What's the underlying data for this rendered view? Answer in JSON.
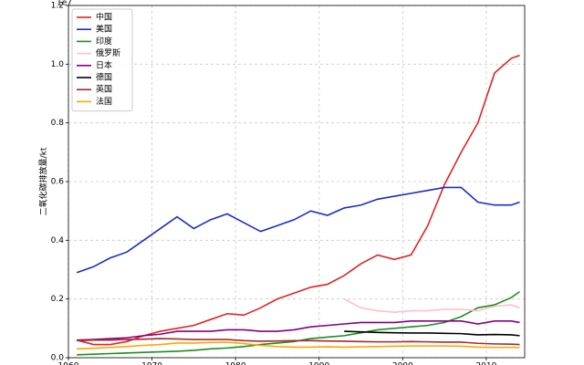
{
  "chart_data": {
    "type": "line",
    "ylabel": "二氧化碳排放量/kt",
    "y_offset_text": "1e7",
    "x": [
      1961,
      1963,
      1965,
      1967,
      1969,
      1971,
      1973,
      1975,
      1977,
      1979,
      1981,
      1983,
      1985,
      1987,
      1989,
      1991,
      1993,
      1995,
      1997,
      1999,
      2001,
      2003,
      2005,
      2007,
      2009,
      2011,
      2013,
      2014
    ],
    "xlim": [
      1960,
      2014.6
    ],
    "xticks": [
      1960,
      1970,
      1980,
      1990,
      2000,
      2010
    ],
    "ylim": [
      0,
      1.2
    ],
    "yticks": [
      {
        "value": 0,
        "label": "0.0"
      },
      0.2,
      0.4,
      0.6,
      0.8,
      {
        "value": 1,
        "label": "1.0"
      },
      1.2
    ],
    "grid": true,
    "legend": "upper left",
    "series": [
      {
        "name": "中国",
        "color": "#e32222",
        "values": [
          0.06,
          0.045,
          0.045,
          0.055,
          0.075,
          0.09,
          0.1,
          0.11,
          0.13,
          0.15,
          0.145,
          0.17,
          0.2,
          0.22,
          0.24,
          0.25,
          0.28,
          0.32,
          0.35,
          0.335,
          0.35,
          0.45,
          0.59,
          0.7,
          0.8,
          0.97,
          1.02,
          1.03
        ]
      },
      {
        "name": "美国",
        "color": "#1c2bc4",
        "values": [
          0.29,
          0.31,
          0.34,
          0.36,
          0.4,
          0.44,
          0.48,
          0.44,
          0.47,
          0.49,
          0.46,
          0.43,
          0.45,
          0.47,
          0.5,
          0.485,
          0.51,
          0.52,
          0.54,
          0.55,
          0.56,
          0.57,
          0.58,
          0.58,
          0.53,
          0.52,
          0.52,
          0.53
        ]
      },
      {
        "name": "印度",
        "color": "#1e8c1e",
        "values": [
          0.01,
          0.012,
          0.014,
          0.016,
          0.018,
          0.02,
          0.022,
          0.025,
          0.03,
          0.033,
          0.038,
          0.045,
          0.05,
          0.055,
          0.065,
          0.07,
          0.075,
          0.085,
          0.095,
          0.1,
          0.105,
          0.11,
          0.12,
          0.14,
          0.17,
          0.18,
          0.205,
          0.225
        ]
      },
      {
        "name": "俄罗斯",
        "color": "#ffc0cb",
        "values": [
          null,
          null,
          null,
          null,
          null,
          null,
          null,
          null,
          null,
          null,
          null,
          null,
          null,
          null,
          null,
          null,
          0.2,
          0.17,
          0.16,
          0.155,
          0.16,
          0.16,
          0.165,
          0.165,
          0.16,
          0.175,
          0.18,
          0.17
        ]
      },
      {
        "name": "日本",
        "color": "#800080",
        "values": [
          0.06,
          0.062,
          0.065,
          0.068,
          0.075,
          0.08,
          0.09,
          0.09,
          0.09,
          0.095,
          0.095,
          0.09,
          0.09,
          0.095,
          0.105,
          0.11,
          0.115,
          0.12,
          0.12,
          0.12,
          0.125,
          0.125,
          0.125,
          0.125,
          0.115,
          0.125,
          0.125,
          0.12
        ]
      },
      {
        "name": "德国",
        "color": "#000000",
        "values": [
          null,
          null,
          null,
          null,
          null,
          null,
          null,
          null,
          null,
          null,
          null,
          null,
          null,
          null,
          null,
          null,
          0.09,
          0.088,
          0.086,
          0.085,
          0.084,
          0.084,
          0.083,
          0.082,
          0.078,
          0.079,
          0.078,
          0.075
        ]
      },
      {
        "name": "英国",
        "color": "#a52a2a",
        "values": [
          0.058,
          0.06,
          0.06,
          0.062,
          0.063,
          0.065,
          0.064,
          0.062,
          0.062,
          0.062,
          0.058,
          0.056,
          0.057,
          0.058,
          0.058,
          0.057,
          0.056,
          0.055,
          0.054,
          0.054,
          0.055,
          0.054,
          0.053,
          0.053,
          0.049,
          0.047,
          0.046,
          0.045
        ]
      },
      {
        "name": "法国",
        "color": "#ffa500",
        "values": [
          0.03,
          0.032,
          0.035,
          0.038,
          0.042,
          0.045,
          0.05,
          0.05,
          0.052,
          0.053,
          0.048,
          0.042,
          0.038,
          0.036,
          0.036,
          0.037,
          0.036,
          0.037,
          0.038,
          0.039,
          0.04,
          0.04,
          0.04,
          0.039,
          0.036,
          0.035,
          0.035,
          0.035
        ]
      }
    ]
  }
}
